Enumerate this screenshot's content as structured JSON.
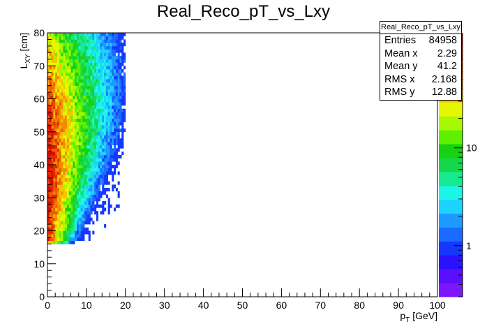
{
  "chart_data": {
    "type": "heatmap",
    "title": "Real_Reco_pT_vs_Lxy",
    "xlabel": "p_T [GeV]",
    "ylabel": "L_XY [cm]",
    "xlim": [
      0,
      100
    ],
    "ylim": [
      0,
      80
    ],
    "x_ticks": [
      "0",
      "10",
      "20",
      "30",
      "40",
      "50",
      "60",
      "70",
      "80",
      "90",
      "100"
    ],
    "y_ticks": [
      "0",
      "10",
      "20",
      "30",
      "40",
      "50",
      "60",
      "70",
      "80"
    ],
    "z_scale": "log",
    "z_ticks": [
      "1",
      "10"
    ],
    "z_range": [
      0.3,
      150
    ],
    "palette": [
      "#7d16ff",
      "#5a10ff",
      "#2a12ff",
      "#1538ff",
      "#1a6bff",
      "#1e99ff",
      "#1bd3ff",
      "#1cf6e8",
      "#16e98f",
      "#15d74c",
      "#18d112",
      "#5ff000",
      "#a6f900",
      "#e5f700",
      "#f4c500",
      "#f08d00",
      "#ea5d00",
      "#e32b00",
      "#d40c00"
    ],
    "grid": false,
    "legend": "none",
    "description_points": [
      {
        "x": 0.5,
        "y": 35,
        "z": 150
      },
      {
        "x": 2.5,
        "y": 40,
        "z": 60
      },
      {
        "x": 5,
        "y": 45,
        "z": 15
      },
      {
        "x": 10,
        "y": 50,
        "z": 3
      },
      {
        "x": 15,
        "y": 60,
        "z": 1
      }
    ]
  },
  "stats": {
    "name": "Real_Reco_pT_vs_Lxy",
    "rows": [
      {
        "label": "Entries",
        "value": "84958"
      },
      {
        "label": "Mean x",
        "value": "2.29"
      },
      {
        "label": "Mean y",
        "value": "41.2"
      },
      {
        "label": "RMS x",
        "value": "2.168"
      },
      {
        "label": "RMS y",
        "value": "12.88"
      }
    ]
  }
}
